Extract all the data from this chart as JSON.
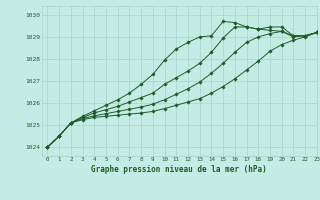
{
  "title": "Graphe pression niveau de la mer (hPa)",
  "bg_color": "#c5ece4",
  "grid_color": "#a8d5cc",
  "line_color": "#1e5c2a",
  "xlim": [
    -0.5,
    23
  ],
  "ylim": [
    1023.6,
    1030.4
  ],
  "yticks": [
    1024,
    1025,
    1026,
    1027,
    1028,
    1029,
    1030
  ],
  "xticks": [
    0,
    1,
    2,
    3,
    4,
    5,
    6,
    7,
    8,
    9,
    10,
    11,
    12,
    13,
    14,
    15,
    16,
    17,
    18,
    19,
    20,
    21,
    22,
    23
  ],
  "series": [
    [
      1024.0,
      1024.5,
      1025.1,
      1025.4,
      1025.65,
      1025.9,
      1026.15,
      1026.45,
      1026.85,
      1027.3,
      1027.95,
      1028.45,
      1028.75,
      1029.0,
      1029.05,
      1029.7,
      1029.65,
      1029.45,
      1029.35,
      1029.45,
      1029.45,
      1029.05,
      1029.05,
      1029.2
    ],
    [
      1024.0,
      1024.5,
      1025.1,
      1025.35,
      1025.55,
      1025.7,
      1025.85,
      1026.05,
      1026.25,
      1026.45,
      1026.85,
      1027.15,
      1027.45,
      1027.8,
      1028.3,
      1028.95,
      1029.45,
      1029.45,
      1029.35,
      1029.3,
      1029.25,
      1029.0,
      1029.05,
      1029.2
    ],
    [
      1024.0,
      1024.5,
      1025.1,
      1025.3,
      1025.42,
      1025.52,
      1025.62,
      1025.72,
      1025.82,
      1025.95,
      1026.15,
      1026.4,
      1026.65,
      1026.95,
      1027.35,
      1027.8,
      1028.3,
      1028.75,
      1029.0,
      1029.15,
      1029.25,
      1029.05,
      1029.05,
      1029.2
    ],
    [
      1024.0,
      1024.5,
      1025.1,
      1025.25,
      1025.35,
      1025.4,
      1025.45,
      1025.5,
      1025.55,
      1025.62,
      1025.75,
      1025.9,
      1026.05,
      1026.2,
      1026.45,
      1026.75,
      1027.1,
      1027.5,
      1027.9,
      1028.35,
      1028.65,
      1028.85,
      1029.0,
      1029.2
    ]
  ]
}
